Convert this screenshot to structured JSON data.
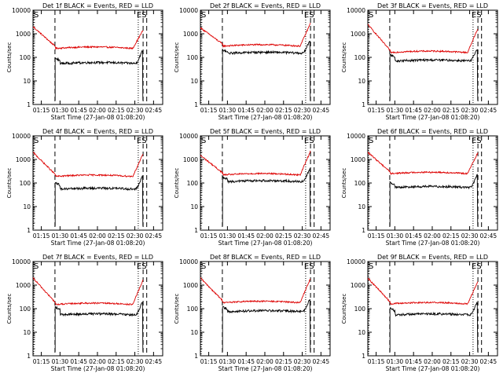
{
  "chart_data": [
    {
      "title": "Det 1f BLACK = Events, RED = LLD",
      "black_start": 70,
      "black_mid": 55,
      "black_end": 85,
      "red_start": 2000,
      "red_mid": 240,
      "red_end": 500
    },
    {
      "title": "Det 2f BLACK = Events, RED = LLD",
      "black_start": 160,
      "black_mid": 150,
      "black_end": 260,
      "red_start": 1800,
      "red_mid": 300,
      "red_end": 1000
    },
    {
      "title": "Det 3f BLACK = Events, RED = LLD",
      "black_start": 100,
      "black_mid": 70,
      "black_end": 120,
      "red_start": 2500,
      "red_mid": 160,
      "red_end": 600
    },
    {
      "title": "Det 4f BLACK = Events, RED = LLD",
      "black_start": 80,
      "black_mid": 55,
      "black_end": 120,
      "red_start": 2000,
      "red_mid": 190,
      "red_end": 600
    },
    {
      "title": "Det 5f BLACK = Events, RED = LLD",
      "black_start": 140,
      "black_mid": 115,
      "black_end": 200,
      "red_start": 1500,
      "red_mid": 220,
      "red_end": 800
    },
    {
      "title": "Det 6f BLACK = Events, RED = LLD",
      "black_start": 80,
      "black_mid": 65,
      "black_end": 120,
      "red_start": 2000,
      "red_mid": 250,
      "red_end": 700
    },
    {
      "title": "Det 7f BLACK = Events, RED = LLD",
      "black_start": 90,
      "black_mid": 55,
      "black_end": 110,
      "red_start": 2000,
      "red_mid": 150,
      "red_end": 600
    },
    {
      "title": "Det 8f BLACK = Events, RED = LLD",
      "black_start": 90,
      "black_mid": 75,
      "black_end": 120,
      "red_start": 2000,
      "red_mid": 180,
      "red_end": 700
    },
    {
      "title": "Det 9f BLACK = Events, RED = LLD",
      "black_start": 80,
      "black_mid": 55,
      "black_end": 110,
      "red_start": 2000,
      "red_mid": 160,
      "red_end": 500
    }
  ],
  "shared": {
    "type": "line",
    "x_tick_labels": [
      "01:15",
      "01:30",
      "01:45",
      "02:00",
      "02:15",
      "02:30",
      "02:45"
    ],
    "y_tick_labels": [
      "1",
      "10",
      "100",
      "1000",
      "10000"
    ],
    "ylim": [
      1,
      10000
    ],
    "y_scale": "log",
    "xlabel": "Start Time (27-Jan-08 01:08:20)",
    "ylabel": "Counts/sec",
    "series_colors": {
      "black": "#000000",
      "red": "#dd0000"
    },
    "marker_left": "S",
    "marker_right": "ES"
  }
}
